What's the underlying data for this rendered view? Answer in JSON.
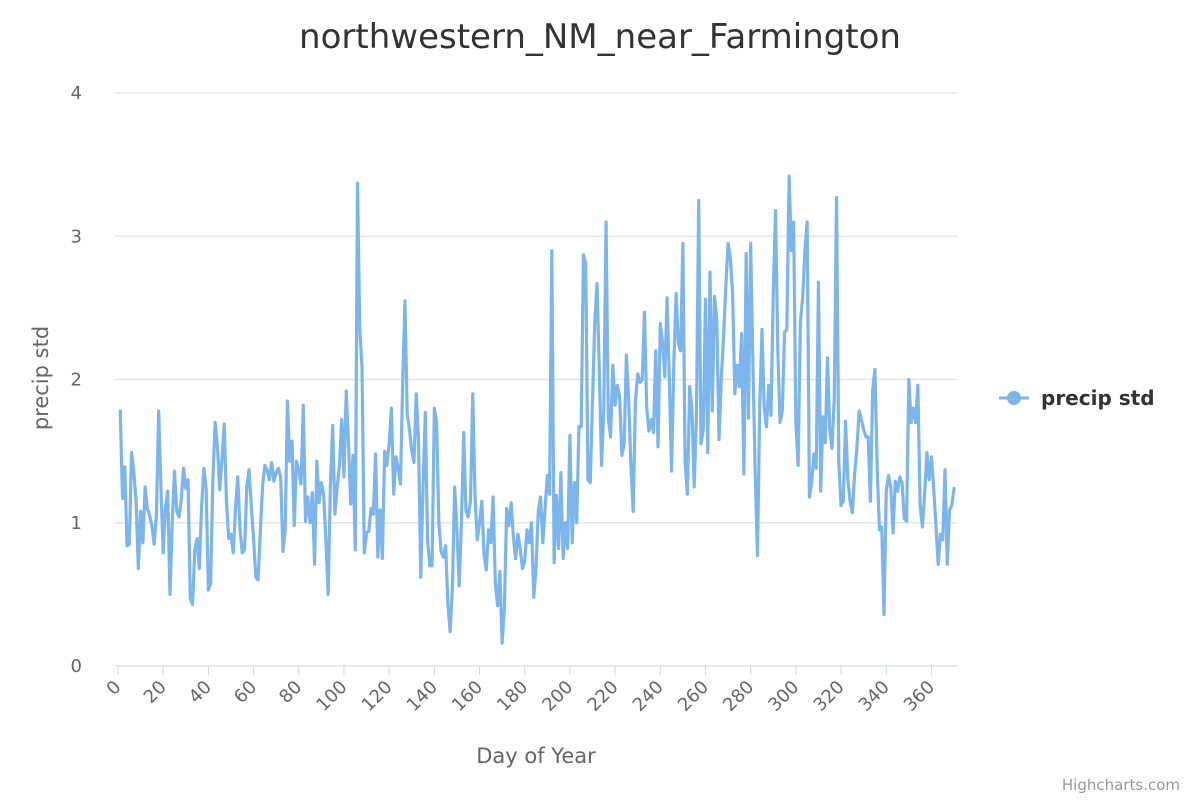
{
  "chart_data": {
    "type": "line",
    "title": "northwestern_NM_near_Farmington",
    "xlabel": "Day of Year",
    "ylabel": "precip std",
    "xlim": [
      0,
      366
    ],
    "ylim": [
      0,
      4
    ],
    "x_ticks": [
      "0",
      "20",
      "40",
      "60",
      "80",
      "100",
      "120",
      "140",
      "160",
      "180",
      "200",
      "220",
      "240",
      "260",
      "280",
      "300",
      "320",
      "340",
      "360"
    ],
    "y_ticks": [
      "0",
      "1",
      "2",
      "3",
      "4"
    ],
    "grid": true,
    "legend_position": "right",
    "series": [
      {
        "name": "precip std",
        "color": "#7cb5ec",
        "x_start": 1,
        "values": [
          1.78,
          1.17,
          1.39,
          0.84,
          0.85,
          1.49,
          1.36,
          1.15,
          0.68,
          1.08,
          0.86,
          1.25,
          1.1,
          1.05,
          0.98,
          0.85,
          1.05,
          1.78,
          1.25,
          0.79,
          1.11,
          1.22,
          0.5,
          1.0,
          1.36,
          1.08,
          1.04,
          1.16,
          1.38,
          1.24,
          1.3,
          0.47,
          0.43,
          0.81,
          0.89,
          0.68,
          1.11,
          1.38,
          1.24,
          0.53,
          0.58,
          1.31,
          1.7,
          1.54,
          1.23,
          1.44,
          1.69,
          1.15,
          0.89,
          0.92,
          0.79,
          1.1,
          1.32,
          0.95,
          0.79,
          0.81,
          1.25,
          1.37,
          1.12,
          0.89,
          0.62,
          0.6,
          0.94,
          1.26,
          1.4,
          1.37,
          1.3,
          1.42,
          1.29,
          1.35,
          1.38,
          1.32,
          0.8,
          0.95,
          1.85,
          1.43,
          1.57,
          0.98,
          1.43,
          1.36,
          1.27,
          1.82,
          1.01,
          1.18,
          1.0,
          1.21,
          0.71,
          1.43,
          1.14,
          1.28,
          1.2,
          0.88,
          0.5,
          1.26,
          1.68,
          1.06,
          1.25,
          1.4,
          1.72,
          1.32,
          1.92,
          1.56,
          1.13,
          1.47,
          0.81,
          3.37,
          2.35,
          2.08,
          0.79,
          0.93,
          0.94,
          1.1,
          1.06,
          1.48,
          0.76,
          1.09,
          0.75,
          1.5,
          1.4,
          1.55,
          1.8,
          1.2,
          1.46,
          1.38,
          1.27,
          1.98,
          2.55,
          1.76,
          1.65,
          1.5,
          1.42,
          1.9,
          1.57,
          0.62,
          1.25,
          1.77,
          0.88,
          0.7,
          0.7,
          1.8,
          1.7,
          1.0,
          0.8,
          0.76,
          0.84,
          0.43,
          0.24,
          0.55,
          1.25,
          0.95,
          0.56,
          1.0,
          1.63,
          1.08,
          1.04,
          1.15,
          1.9,
          1.19,
          0.88,
          1.0,
          1.15,
          0.78,
          0.67,
          0.95,
          0.86,
          1.18,
          0.58,
          0.42,
          0.66,
          0.16,
          0.4,
          1.1,
          0.98,
          1.14,
          0.9,
          0.75,
          0.92,
          0.82,
          0.68,
          0.73,
          0.95,
          0.86,
          1.0,
          0.48,
          0.68,
          1.08,
          1.18,
          0.86,
          1.1,
          1.33,
          1.2,
          2.9,
          0.72,
          1.19,
          0.82,
          1.35,
          0.75,
          1.0,
          0.82,
          1.61,
          0.86,
          1.28,
          1.0,
          1.67,
          1.67,
          2.87,
          2.81,
          1.3,
          1.28,
          1.85,
          2.4,
          2.67,
          2.07,
          1.4,
          1.8,
          3.1,
          1.73,
          1.6,
          2.1,
          1.82,
          1.96,
          1.88,
          1.47,
          1.55,
          2.17,
          1.86,
          1.4,
          1.08,
          1.85,
          2.04,
          1.98,
          2.0,
          2.47,
          1.8,
          1.64,
          1.72,
          1.63,
          2.2,
          1.53,
          2.39,
          2.26,
          2.02,
          2.57,
          2.0,
          1.36,
          2.12,
          2.6,
          2.25,
          2.2,
          2.95,
          1.42,
          1.2,
          1.95,
          1.8,
          1.25,
          1.75,
          3.25,
          1.55,
          1.65,
          2.56,
          1.49,
          2.75,
          1.78,
          2.58,
          2.42,
          1.58,
          2.01,
          2.3,
          2.65,
          2.95,
          2.85,
          2.6,
          1.9,
          2.1,
          1.95,
          2.32,
          1.34,
          2.88,
          1.73,
          2.95,
          2.1,
          1.35,
          0.77,
          1.8,
          2.35,
          1.8,
          1.67,
          1.96,
          1.75,
          2.6,
          3.18,
          2.21,
          1.7,
          1.78,
          2.33,
          2.35,
          3.42,
          2.9,
          3.1,
          1.7,
          1.4,
          2.4,
          2.57,
          2.9,
          3.1,
          1.18,
          1.28,
          1.48,
          1.38,
          2.68,
          1.22,
          1.74,
          1.56,
          2.15,
          1.65,
          1.52,
          1.87,
          3.27,
          1.42,
          1.12,
          1.15,
          1.71,
          1.3,
          1.15,
          1.07,
          1.34,
          1.52,
          1.78,
          1.72,
          1.65,
          1.6,
          1.6,
          1.15,
          1.93,
          2.07,
          1.38,
          0.95,
          0.97,
          0.36,
          1.22,
          1.33,
          1.25,
          0.93,
          1.29,
          1.22,
          1.32,
          1.28,
          1.03,
          1.01,
          2.0,
          1.7,
          1.8,
          1.7,
          1.96,
          1.12,
          0.97,
          1.2,
          1.49,
          1.3,
          1.46,
          1.24,
          0.98,
          0.71,
          0.92,
          0.88,
          1.37,
          0.71,
          1.09,
          1.12,
          1.24
        ]
      }
    ]
  },
  "credits": "Highcharts.com"
}
